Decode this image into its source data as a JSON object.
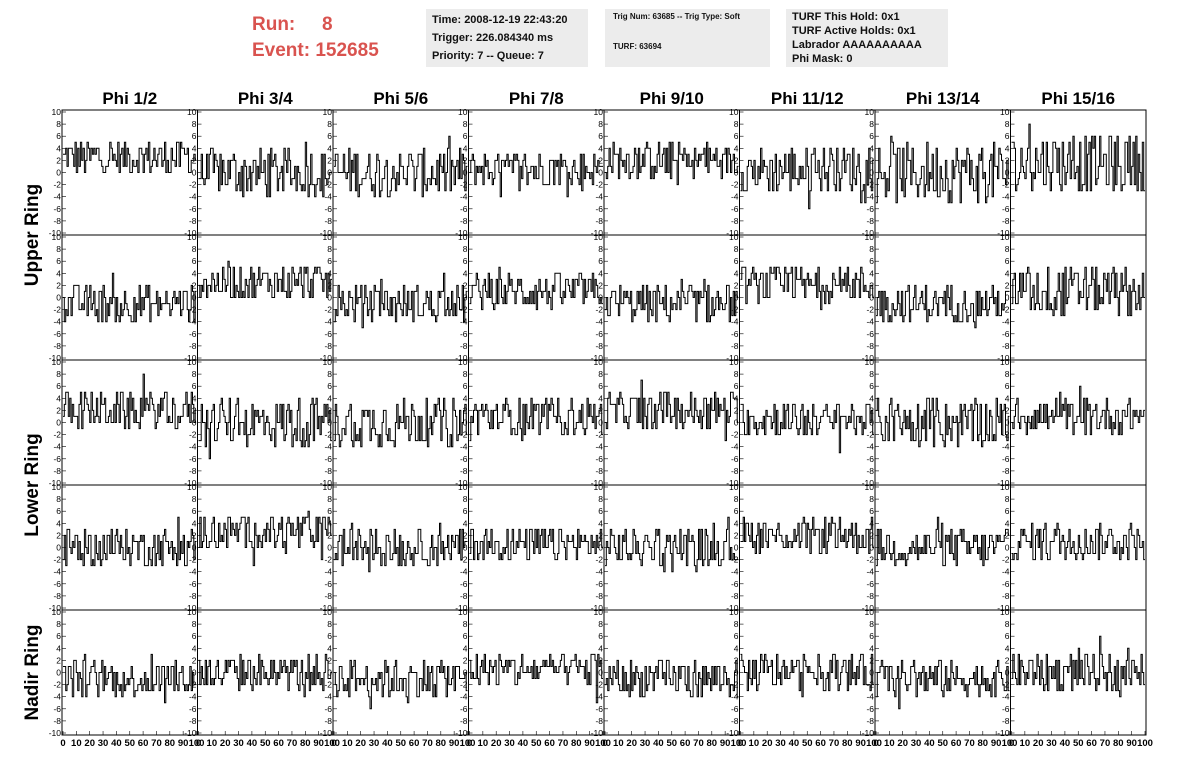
{
  "header": {
    "run_label": "Run:",
    "run_value": "8",
    "event_label": "Event:",
    "event_value": "152685",
    "time": "Time: 2008-12-19 22:43:20",
    "trigger": "Trigger: 226.084340 ms",
    "priority": "Priority: 7 -- Queue: 7",
    "trig_num": "Trig Num: 63685 -- Trig Type: Soft",
    "turf": "TURF: 63694",
    "turf_this_hold": "TURF This Hold: 0x1",
    "turf_active_holds": "TURF Active Holds: 0x1",
    "labrador": "Labrador AAAAAAAAAA",
    "phi_mask": "Phi Mask: 0"
  },
  "colors": {
    "header_text": "#d9534f",
    "panel_bg": "#ececec",
    "trace": "#000000"
  },
  "chart_data": {
    "type": "line",
    "columns": [
      "Phi 1/2",
      "Phi 3/4",
      "Phi 5/6",
      "Phi 7/8",
      "Phi 9/10",
      "Phi 11/12",
      "Phi 13/14",
      "Phi 15/16"
    ],
    "rows": [
      "Upper Ring",
      "Upper Ring",
      "Lower Ring",
      "Lower Ring",
      "Nadir Ring"
    ],
    "row_labels": [
      {
        "text": "Upper Ring",
        "rows": [
          0,
          1
        ]
      },
      {
        "text": "Lower Ring",
        "rows": [
          2,
          3
        ]
      },
      {
        "text": "Nadir Ring",
        "rows": [
          4,
          4
        ]
      }
    ],
    "xlim": [
      0,
      100
    ],
    "ylim": [
      -10,
      10
    ],
    "x_ticks": [
      "0",
      "10",
      "20",
      "30",
      "40",
      "50",
      "60",
      "70",
      "80",
      "90",
      "100"
    ],
    "y_ticks": [
      "-10",
      "-8",
      "-6",
      "-4",
      "-2",
      "0",
      "2",
      "4",
      "6",
      "8",
      "10"
    ],
    "samples": 100,
    "offsets": [
      [
        2.5,
        0,
        0,
        0.5,
        2,
        0.5,
        0,
        1.5
      ],
      [
        -1,
        2.5,
        -1,
        1,
        -1,
        2,
        -1,
        1
      ],
      [
        2,
        0,
        0,
        1,
        2,
        0.5,
        0,
        1
      ],
      [
        0,
        2.5,
        0,
        0.5,
        0,
        2,
        0,
        1
      ],
      [
        -1,
        0,
        -1,
        0.5,
        -1,
        0,
        -1,
        0
      ]
    ],
    "spread": [
      [
        3,
        4,
        4,
        3,
        3,
        4,
        5,
        5
      ],
      [
        3,
        3,
        3,
        3,
        3,
        3,
        3,
        4
      ],
      [
        3,
        4,
        4,
        3,
        3,
        3,
        4,
        3
      ],
      [
        3,
        3,
        3,
        3,
        3,
        3,
        3,
        3
      ],
      [
        3,
        3,
        3,
        3,
        3,
        3,
        3,
        3
      ]
    ]
  }
}
